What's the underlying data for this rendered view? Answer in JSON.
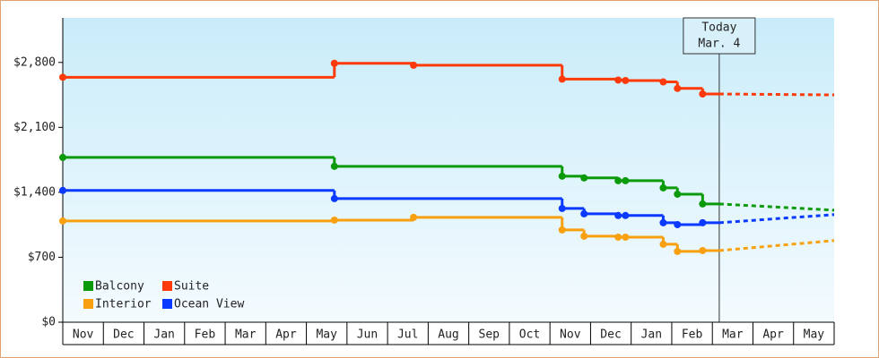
{
  "chart_data": {
    "type": "step",
    "ylim": [
      0,
      3280
    ],
    "yticks": [
      {
        "value": 0,
        "label": "$0"
      },
      {
        "value": 700,
        "label": "$700"
      },
      {
        "value": 1400,
        "label": "$1,400"
      },
      {
        "value": 2100,
        "label": "$2,100"
      },
      {
        "value": 2800,
        "label": "$2,800"
      }
    ],
    "xlim": [
      0,
      19
    ],
    "xticks": [
      {
        "value": 0.5,
        "label": "Nov"
      },
      {
        "value": 1.5,
        "label": "Dec"
      },
      {
        "value": 2.5,
        "label": "Jan"
      },
      {
        "value": 3.5,
        "label": "Feb"
      },
      {
        "value": 4.5,
        "label": "Mar"
      },
      {
        "value": 5.5,
        "label": "Apr"
      },
      {
        "value": 6.5,
        "label": "May"
      },
      {
        "value": 7.5,
        "label": "Jun"
      },
      {
        "value": 8.5,
        "label": "Jul"
      },
      {
        "value": 9.5,
        "label": "Aug"
      },
      {
        "value": 10.5,
        "label": "Sep"
      },
      {
        "value": 11.5,
        "label": "Oct"
      },
      {
        "value": 12.5,
        "label": "Nov"
      },
      {
        "value": 13.5,
        "label": "Dec"
      },
      {
        "value": 14.5,
        "label": "Jan"
      },
      {
        "value": 15.5,
        "label": "Feb"
      },
      {
        "value": 16.5,
        "label": "Mar"
      },
      {
        "value": 17.5,
        "label": "Apr"
      },
      {
        "value": 18.5,
        "label": "May"
      }
    ],
    "today": {
      "x": 16.17,
      "label": "Today",
      "date": "Mar. 4"
    },
    "series": [
      {
        "name": "Balcony",
        "color": "#0a9a0a",
        "x": [
          0,
          6.69,
          12.3,
          12.84,
          13.68,
          13.86,
          14.79,
          15.14,
          15.76
        ],
        "values": [
          1776,
          1680,
          1574,
          1555,
          1525,
          1525,
          1448,
          1380,
          1275
        ],
        "forecast": {
          "x": [
            16.17,
            19
          ],
          "values": [
            1275,
            1207
          ]
        }
      },
      {
        "name": "Suite",
        "color": "#ff3a0a",
        "x": [
          0,
          6.69,
          8.64,
          12.3,
          13.68,
          13.86,
          14.79,
          15.14,
          15.76
        ],
        "values": [
          2640,
          2790,
          2770,
          2620,
          2610,
          2605,
          2590,
          2520,
          2460
        ],
        "forecast": {
          "x": [
            16.17,
            19
          ],
          "values": [
            2460,
            2450
          ]
        }
      },
      {
        "name": "Interior",
        "color": "#f8a010",
        "x": [
          0,
          6.69,
          8.64,
          12.3,
          12.84,
          13.68,
          13.86,
          14.79,
          15.14,
          15.76
        ],
        "values": [
          1091,
          1100,
          1130,
          995,
          927,
          917,
          917,
          840,
          763,
          772
        ],
        "forecast": {
          "x": [
            16.17,
            19
          ],
          "values": [
            772,
            880
          ]
        }
      },
      {
        "name": "Ocean View",
        "color": "#0a3aff",
        "x": [
          0,
          6.69,
          12.3,
          12.84,
          13.68,
          13.86,
          14.79,
          15.14,
          15.76
        ],
        "values": [
          1420,
          1332,
          1226,
          1168,
          1150,
          1150,
          1072,
          1052,
          1072
        ],
        "forecast": {
          "x": [
            16.17,
            19
          ],
          "values": [
            1072,
            1160
          ]
        }
      }
    ]
  }
}
